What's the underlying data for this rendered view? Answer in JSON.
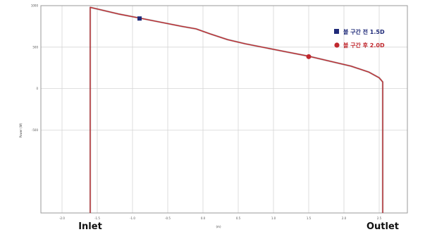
{
  "chart_data": {
    "type": "line",
    "xlabel": "(m)",
    "ylabel": "Power (W)",
    "xlim": [
      -2.3,
      2.9
    ],
    "ylim": [
      -1500,
      1000
    ],
    "x_ticks": [
      "-2.0",
      "-1.5",
      "-1.0",
      "-0.5",
      "0.0",
      "0.5",
      "1.0",
      "1.5",
      "2.0",
      "2.5"
    ],
    "y_ticks": [
      "1000",
      "500",
      "0",
      "-500"
    ],
    "series": [
      {
        "color": "#c0282e",
        "x": [
          -1.6,
          -1.6,
          -1.2,
          -0.9,
          -0.6,
          -0.3,
          -0.1,
          0.1,
          0.35,
          0.6,
          0.9,
          1.2,
          1.5,
          1.8,
          2.1,
          2.35,
          2.5,
          2.55,
          2.55
        ],
        "y": [
          -1500,
          980,
          900,
          850,
          800,
          750,
          720,
          660,
          590,
          540,
          490,
          440,
          390,
          330,
          270,
          200,
          130,
          80,
          -1500
        ]
      }
    ],
    "markers": [
      {
        "label": "볼 구간 전 1.5D",
        "color": "#1f2a78",
        "shape": "square",
        "x": -0.9,
        "y": 845
      },
      {
        "label": "볼 구간 후 2.0D",
        "color": "#c0282e",
        "shape": "circle",
        "x": 1.5,
        "y": 385
      }
    ],
    "annotations": [
      {
        "text": "Inlet",
        "x": -1.6
      },
      {
        "text": "Outlet",
        "x": 2.55
      }
    ],
    "legend_position": "top-right",
    "grid": true
  }
}
